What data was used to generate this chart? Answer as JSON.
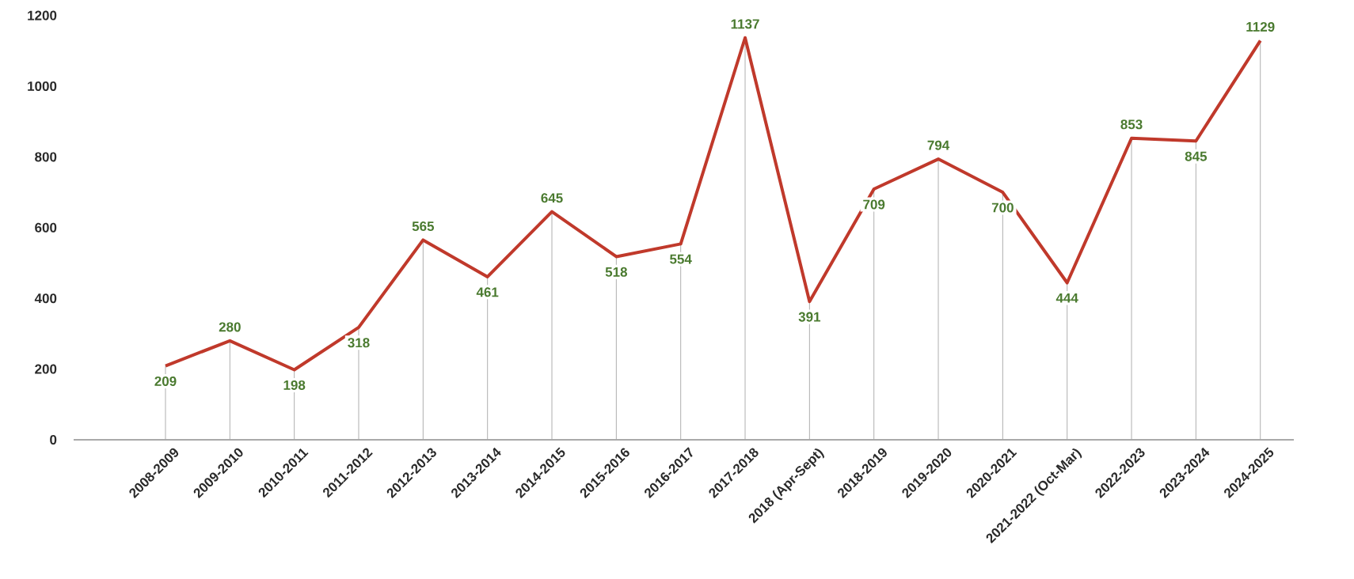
{
  "chart_data": {
    "type": "line",
    "categories": [
      "2008-2009",
      "2009-2010",
      "2010-2011",
      "2011-2012",
      "2012-2013",
      "2013-2014",
      "2014-2015",
      "2015-2016",
      "2016-2017",
      "2017-2018",
      "2018 (Apr-Sept)",
      "2018-2019",
      "2019-2020",
      "2020-2021",
      "2021-2022 (Oct-Mar)",
      "2022-2023",
      "2023-2024",
      "2024-2025"
    ],
    "values": [
      209,
      280,
      198,
      318,
      565,
      461,
      645,
      518,
      554,
      1137,
      391,
      709,
      794,
      700,
      444,
      853,
      845,
      1129
    ],
    "color": "#c0392b",
    "ylim": [
      0,
      1200
    ],
    "yticks": [
      0,
      200,
      400,
      600,
      800,
      1000,
      1200
    ],
    "grid": "x",
    "data_labels": true
  }
}
